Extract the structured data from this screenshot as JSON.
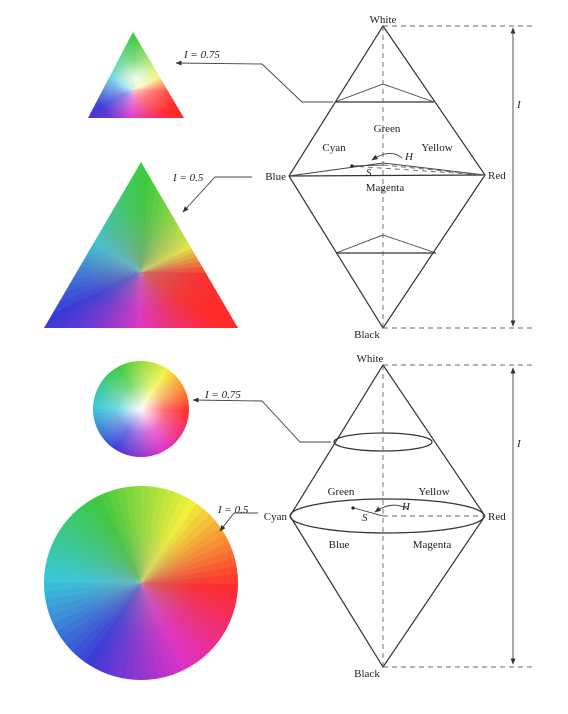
{
  "top_model": {
    "apex_top": "White",
    "apex_bottom": "Black",
    "left_vertex": "Blue",
    "right_vertex": "Red",
    "green": "Green",
    "cyan": "Cyan",
    "yellow": "Yellow",
    "magenta": "Magenta",
    "hue_symbol": "H",
    "saturation_symbol": "S",
    "intensity_symbol": "I",
    "slice_upper_label": "I = 0.75",
    "slice_middle_label": "I = 0.5"
  },
  "bottom_model": {
    "apex_top": "White",
    "apex_bottom": "Black",
    "left_vertex": "Cyan",
    "right_vertex": "Red",
    "green": "Green",
    "yellow": "Yellow",
    "blue": "Blue",
    "magenta": "Magenta",
    "hue_symbol": "H",
    "saturation_symbol": "S",
    "intensity_symbol": "I",
    "slice_upper_label": "I = 0.75",
    "slice_middle_label": "I = 0.5"
  },
  "colors": {
    "red": "#ff2a2a",
    "yellow": "#f2f23a",
    "green": "#3ec93e",
    "cyan": "#38c8d8",
    "blue": "#3a3ad8",
    "magenta": "#e030c8"
  }
}
